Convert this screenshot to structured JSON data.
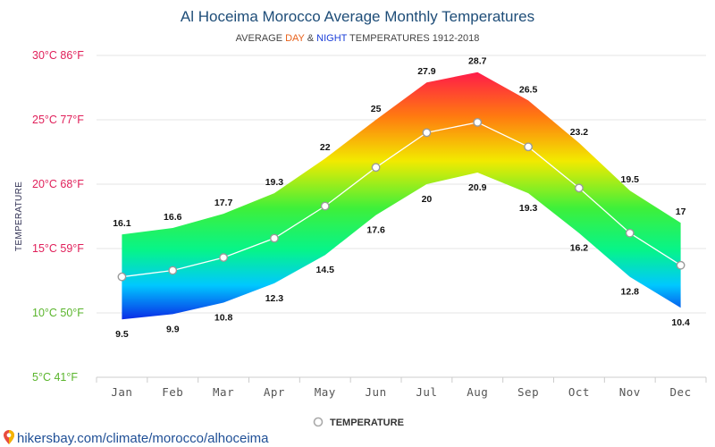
{
  "chart_data": {
    "type": "area",
    "title": "Al Hoceima Morocco Average Monthly Temperatures",
    "subtitle": {
      "prefix": "AVERAGE ",
      "day": "DAY",
      "amp": " & ",
      "night": "NIGHT",
      "suffix": " TEMPERATURES 1912-2018"
    },
    "ylabel": "TEMPERATURE",
    "ylim": [
      5,
      30
    ],
    "y_ticks": [
      {
        "value": 30,
        "label": "30°C 86°F",
        "color": "#e0205a"
      },
      {
        "value": 25,
        "label": "25°C 77°F",
        "color": "#e0205a"
      },
      {
        "value": 20,
        "label": "20°C 68°F",
        "color": "#e0205a"
      },
      {
        "value": 15,
        "label": "15°C 59°F",
        "color": "#e0205a"
      },
      {
        "value": 10,
        "label": "10°C 50°F",
        "color": "#5ab52c"
      },
      {
        "value": 5,
        "label": "5°C 41°F",
        "color": "#5ab52c"
      }
    ],
    "categories": [
      "Jan",
      "Feb",
      "Mar",
      "Apr",
      "May",
      "Jun",
      "Jul",
      "Aug",
      "Sep",
      "Oct",
      "Nov",
      "Dec"
    ],
    "day": [
      16.1,
      16.6,
      17.7,
      19.3,
      22,
      25,
      27.9,
      28.7,
      26.5,
      23.2,
      19.5,
      17
    ],
    "night": [
      9.5,
      9.9,
      10.8,
      12.3,
      14.5,
      17.6,
      20,
      20.9,
      19.3,
      16.2,
      12.8,
      10.4
    ],
    "series": [
      {
        "name": "TEMPERATURE",
        "values": [
          12.8,
          13.3,
          14.3,
          15.8,
          18.3,
          21.3,
          24,
          24.8,
          22.9,
          19.7,
          16.2,
          13.7
        ]
      }
    ],
    "grid": true,
    "legend_position": "bottom-center",
    "colors": {
      "day": "#e8611a",
      "night": "#1a3ed8",
      "mean_line": "#ffffff",
      "grid": "#e6e6e6"
    }
  },
  "footer": {
    "source": "hikersbay.com/climate/morocco/alhoceima",
    "icon": "location-pin-icon"
  }
}
